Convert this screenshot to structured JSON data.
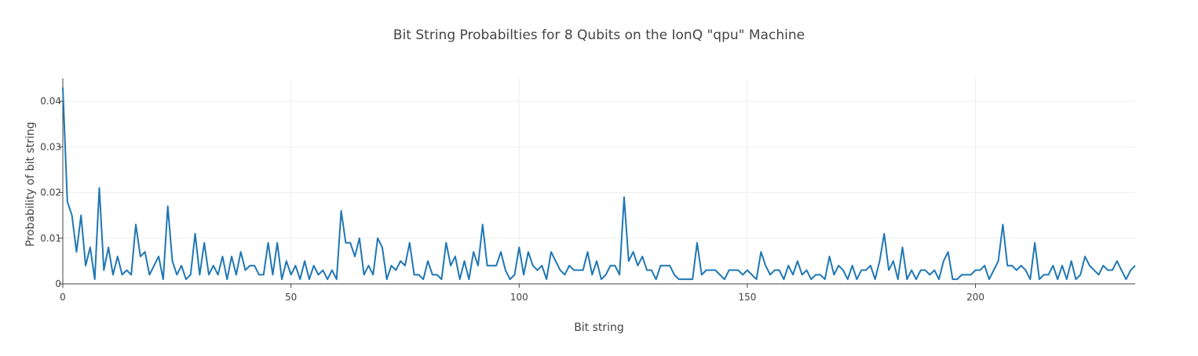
{
  "chart_data": {
    "type": "line",
    "title": "Bit String Probabilties for 8 Qubits on the IonQ \"qpu\" Machine",
    "xlabel": "Bit string",
    "ylabel": "Probability of bit string",
    "xlim": [
      0,
      235
    ],
    "ylim": [
      0,
      0.045
    ],
    "x_ticks": [
      0,
      50,
      100,
      150,
      200
    ],
    "y_ticks": [
      0,
      0.01,
      0.02,
      0.03,
      0.04
    ],
    "x_tick_labels": [
      "0",
      "50",
      "100",
      "150",
      "200"
    ],
    "y_tick_labels": [
      "0",
      "0.01",
      "0.02",
      "0.03",
      "0.04"
    ],
    "grid": true,
    "legend": "none",
    "line_color": "#1f77b4",
    "series": [
      {
        "x_start": 0,
        "values": [
          0.043,
          0.018,
          0.015,
          0.007,
          0.015,
          0.004,
          0.008,
          0.001,
          0.021,
          0.003,
          0.008,
          0.002,
          0.006,
          0.002,
          0.003,
          0.002,
          0.013,
          0.006,
          0.007,
          0.002,
          0.004,
          0.006,
          0.001,
          0.017,
          0.005,
          0.002,
          0.004,
          0.001,
          0.002,
          0.011,
          0.002,
          0.009,
          0.002,
          0.004,
          0.002,
          0.006,
          0.001,
          0.006,
          0.002,
          0.007,
          0.003,
          0.004,
          0.004,
          0.002,
          0.002,
          0.009,
          0.002,
          0.009,
          0.001,
          0.005,
          0.002,
          0.004,
          0.001,
          0.005,
          0.001,
          0.004,
          0.002,
          0.003,
          0.001,
          0.003,
          0.001,
          0.016,
          0.009,
          0.009,
          0.006,
          0.01,
          0.002,
          0.004,
          0.002,
          0.01,
          0.008,
          0.001,
          0.004,
          0.003,
          0.005,
          0.004,
          0.009,
          0.002,
          0.002,
          0.001,
          0.005,
          0.002,
          0.002,
          0.001,
          0.009,
          0.004,
          0.006,
          0.001,
          0.005,
          0.001,
          0.007,
          0.004,
          0.013,
          0.004,
          0.004,
          0.004,
          0.007,
          0.003,
          0.001,
          0.002,
          0.008,
          0.002,
          0.007,
          0.004,
          0.003,
          0.004,
          0.001,
          0.007,
          0.005,
          0.003,
          0.002,
          0.004,
          0.003,
          0.003,
          0.003,
          0.007,
          0.002,
          0.005,
          0.001,
          0.002,
          0.004,
          0.004,
          0.002,
          0.019,
          0.005,
          0.007,
          0.004,
          0.006,
          0.003,
          0.003,
          0.001,
          0.004,
          0.004,
          0.004,
          0.002,
          0.001,
          0.001,
          0.001,
          0.001,
          0.009,
          0.002,
          0.003,
          0.003,
          0.003,
          0.002,
          0.001,
          0.003,
          0.003,
          0.003,
          0.002,
          0.003,
          0.002,
          0.001,
          0.007,
          0.004,
          0.002,
          0.003,
          0.003,
          0.001,
          0.004,
          0.002,
          0.005,
          0.002,
          0.003,
          0.001,
          0.002,
          0.002,
          0.001,
          0.006,
          0.002,
          0.004,
          0.003,
          0.001,
          0.004,
          0.001,
          0.003,
          0.003,
          0.004,
          0.001,
          0.005,
          0.011,
          0.003,
          0.005,
          0.001,
          0.008,
          0.001,
          0.003,
          0.001,
          0.003,
          0.003,
          0.002,
          0.003,
          0.001,
          0.005,
          0.007,
          0.001,
          0.001,
          0.002,
          0.002,
          0.002,
          0.003,
          0.003,
          0.004,
          0.001,
          0.003,
          0.005,
          0.013,
          0.004,
          0.004,
          0.003,
          0.004,
          0.003,
          0.001,
          0.009,
          0.001,
          0.002,
          0.002,
          0.004,
          0.001,
          0.004,
          0.001,
          0.005,
          0.001,
          0.002,
          0.006,
          0.004,
          0.003,
          0.002,
          0.004,
          0.003,
          0.003,
          0.005,
          0.003,
          0.001,
          0.003,
          0.004
        ]
      }
    ]
  }
}
